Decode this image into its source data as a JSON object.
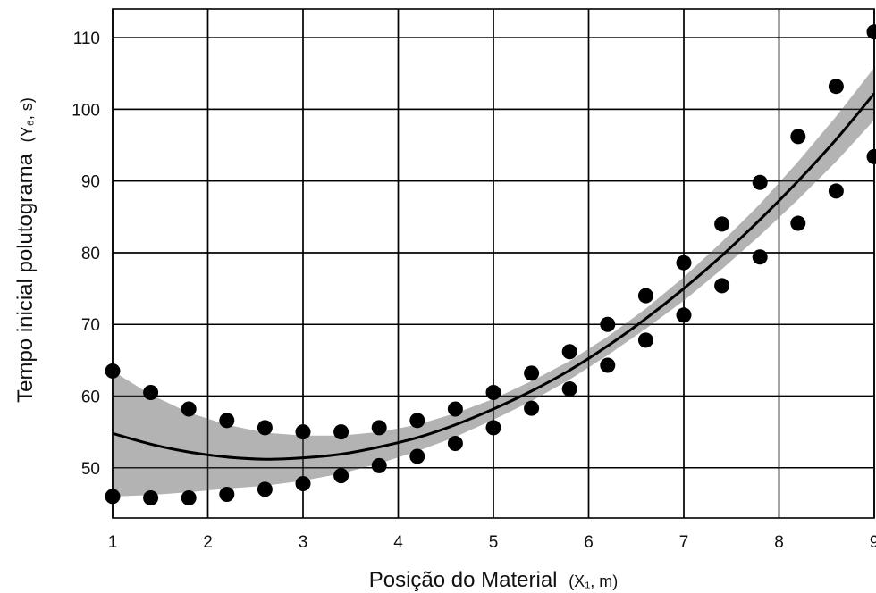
{
  "chart_data": {
    "type": "scatter",
    "title": "",
    "xlabel": "Posição do Material",
    "xlabel_unit": "(X₁, m)",
    "ylabel": "Tempo inicial polutograma",
    "ylabel_unit": "(Y₆, s)",
    "xlim": [
      1,
      9
    ],
    "ylim": [
      43,
      114
    ],
    "xticks": [
      1,
      2,
      3,
      4,
      5,
      6,
      7,
      8,
      9
    ],
    "yticks": [
      50,
      60,
      70,
      80,
      90,
      100,
      110
    ],
    "grid": true,
    "colors": {
      "points": "#000000",
      "fit_line": "#000000",
      "band": "#b3b3b3",
      "grid": "#000000"
    },
    "series": [
      {
        "kind": "points",
        "upper": [
          [
            1.0,
            63.5
          ],
          [
            1.4,
            60.5
          ],
          [
            1.8,
            58.2
          ],
          [
            2.2,
            56.6
          ],
          [
            2.6,
            55.6
          ],
          [
            3.0,
            55.0
          ],
          [
            3.4,
            55.0
          ],
          [
            3.8,
            55.6
          ],
          [
            4.2,
            56.6
          ],
          [
            4.6,
            58.2
          ],
          [
            5.0,
            60.5
          ],
          [
            5.4,
            63.2
          ],
          [
            5.8,
            66.2
          ],
          [
            6.2,
            70.0
          ],
          [
            6.6,
            74.0
          ],
          [
            7.0,
            78.6
          ],
          [
            7.4,
            84.0
          ],
          [
            7.8,
            89.8
          ],
          [
            8.2,
            96.2
          ],
          [
            8.6,
            103.2
          ],
          [
            9.0,
            110.8
          ]
        ],
        "lower": [
          [
            1.0,
            46.0
          ],
          [
            1.4,
            45.8
          ],
          [
            1.8,
            45.8
          ],
          [
            2.2,
            46.3
          ],
          [
            2.6,
            47.0
          ],
          [
            3.0,
            47.8
          ],
          [
            3.4,
            48.9
          ],
          [
            3.8,
            50.3
          ],
          [
            4.2,
            51.6
          ],
          [
            4.6,
            53.4
          ],
          [
            5.0,
            55.6
          ],
          [
            5.4,
            58.3
          ],
          [
            5.8,
            61.0
          ],
          [
            6.2,
            64.3
          ],
          [
            6.6,
            67.8
          ],
          [
            7.0,
            71.3
          ],
          [
            7.4,
            75.4
          ],
          [
            7.8,
            79.4
          ],
          [
            8.2,
            84.1
          ],
          [
            8.6,
            88.6
          ],
          [
            9.0,
            93.4
          ]
        ]
      },
      {
        "kind": "fit",
        "x": [
          1.0,
          1.4,
          1.8,
          2.2,
          2.6,
          3.0,
          3.4,
          3.8,
          4.2,
          4.6,
          5.0,
          5.4,
          5.8,
          6.2,
          6.6,
          7.0,
          7.4,
          7.8,
          8.2,
          8.6,
          9.0
        ],
        "y": [
          54.8,
          53.3,
          52.2,
          51.5,
          51.2,
          51.4,
          51.9,
          52.9,
          54.2,
          56.0,
          58.2,
          60.7,
          63.6,
          67.0,
          70.8,
          75.0,
          79.6,
          84.6,
          90.0,
          95.8,
          102.2
        ],
        "band_upper": [
          63.5,
          60.2,
          57.7,
          56.0,
          54.9,
          54.5,
          54.5,
          55.0,
          56.0,
          57.6,
          59.6,
          62.1,
          64.9,
          68.3,
          72.2,
          76.6,
          81.5,
          86.8,
          92.7,
          99.0,
          105.8
        ],
        "band_lower": [
          46.0,
          46.2,
          46.6,
          47.1,
          47.5,
          48.2,
          49.2,
          50.6,
          52.3,
          54.3,
          56.7,
          59.3,
          62.3,
          65.7,
          69.4,
          73.3,
          77.7,
          82.4,
          87.4,
          92.7,
          98.5
        ]
      }
    ]
  }
}
